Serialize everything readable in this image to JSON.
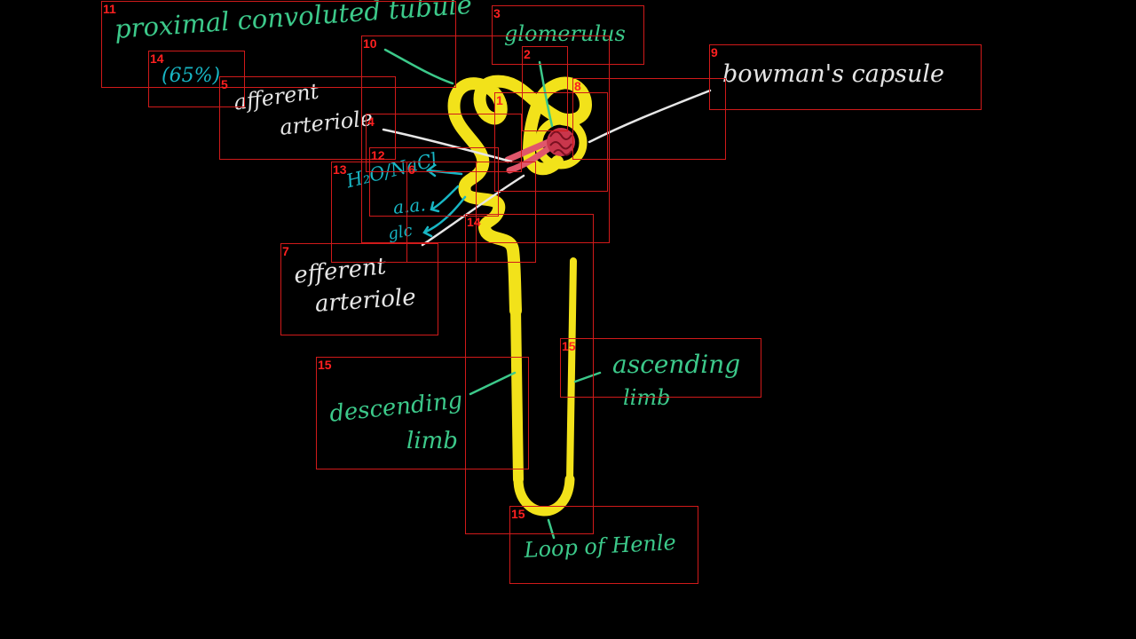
{
  "labels": {
    "pct": "proximal convoluted tubule",
    "pct_percent": "(65%)",
    "glomerulus": "glomerulus",
    "bowmans": "bowman's capsule",
    "afferent_line1": "afferent",
    "afferent_line2": "arteriole",
    "efferent_line1": "efferent",
    "efferent_line2": "arteriole",
    "reabsorb_1": "H₂O/NaCl",
    "reabsorb_2": "a.a.",
    "reabsorb_3": "glc",
    "descending_line1": "descending",
    "descending_line2": "limb",
    "ascending_line1": "ascending",
    "ascending_line2": "limb",
    "loop": "Loop of Henle"
  },
  "box_numbers": [
    "11",
    "3",
    "9",
    "10",
    "2",
    "8",
    "1",
    "14",
    "5",
    "4",
    "12",
    "6",
    "13",
    "14",
    "7",
    "15",
    "15",
    "15"
  ],
  "colors": {
    "tubule": "#f2e21a",
    "glomerulus": "#e0566b",
    "green_text": "#3cc98a",
    "white_text": "#e6e6e6",
    "teal_text": "#18b6c4",
    "annotation_box": "#d01a1a",
    "annotation_number": "#ff2020"
  }
}
